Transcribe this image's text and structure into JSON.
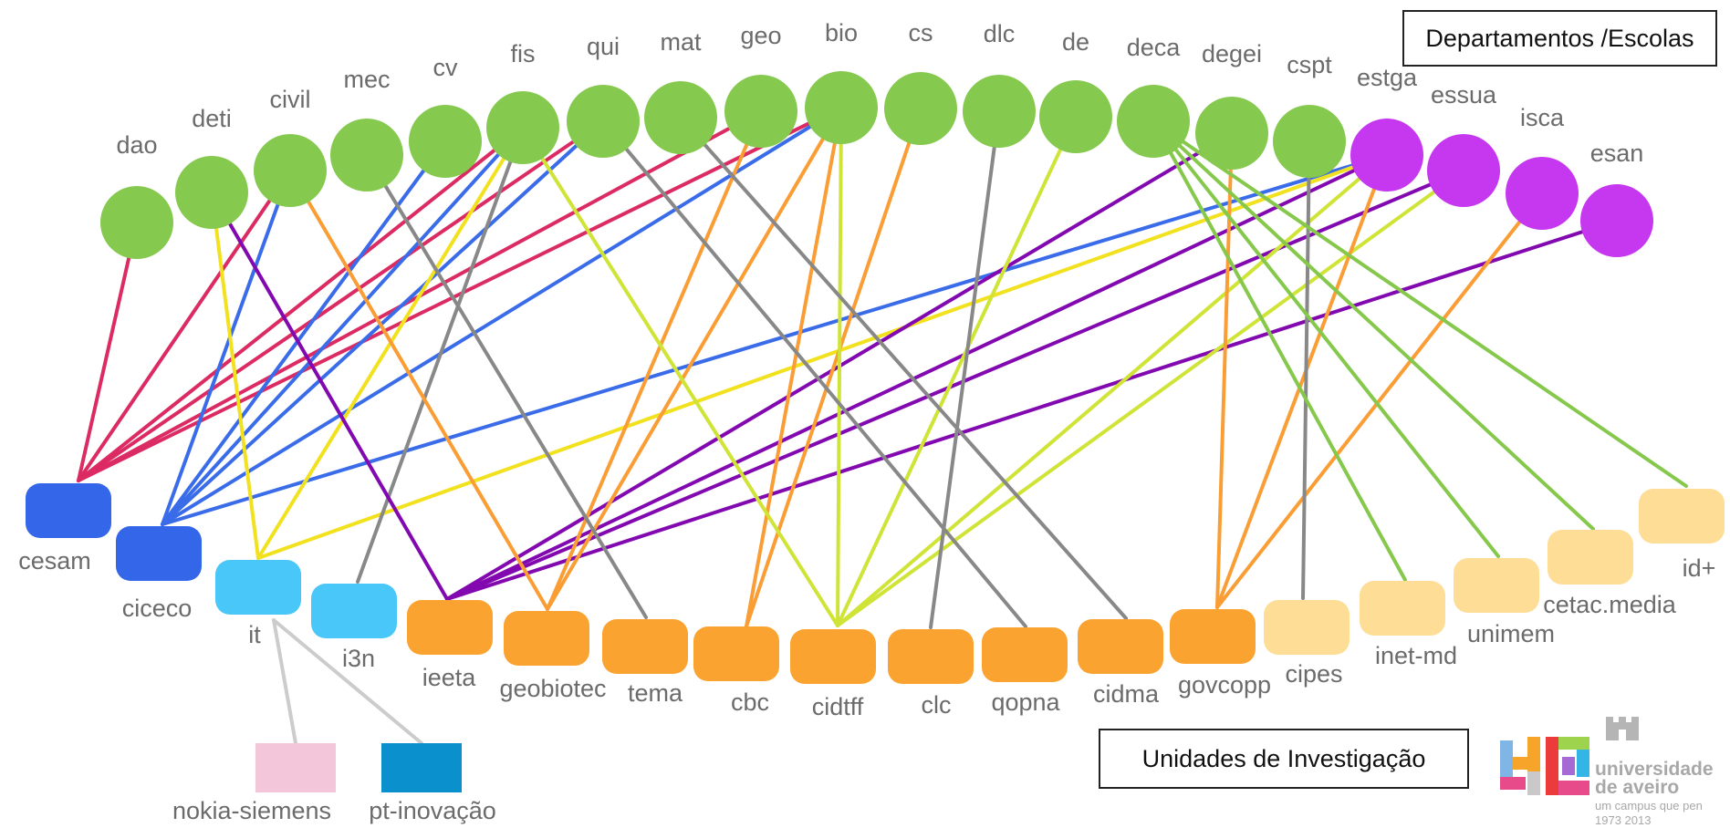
{
  "legend": {
    "departments": "Departamentos /Escolas",
    "units": "Unidades de Investigação"
  },
  "logo": {
    "name_line1": "universidade",
    "name_line2": "de aveiro",
    "tagline": "um campus que pen",
    "years": "1973  2013"
  },
  "colors": {
    "department": "#85c94e",
    "school": "#c637f0",
    "unit_blue": "#3366e8",
    "unit_cyan": "#49c7f8",
    "unit_orange": "#fba331",
    "unit_tan": "#fedd96",
    "partner_pink": "#f4c6da",
    "partner_blue": "#0a90cc",
    "label": "#6b6b6b"
  },
  "nodes": {
    "departments": [
      {
        "id": "dao",
        "label": "dao",
        "type": "department"
      },
      {
        "id": "deti",
        "label": "deti",
        "type": "department"
      },
      {
        "id": "civil",
        "label": "civil",
        "type": "department"
      },
      {
        "id": "mec",
        "label": "mec",
        "type": "department"
      },
      {
        "id": "cv",
        "label": "cv",
        "type": "department"
      },
      {
        "id": "fis",
        "label": "fis",
        "type": "department"
      },
      {
        "id": "qui",
        "label": "qui",
        "type": "department"
      },
      {
        "id": "mat",
        "label": "mat",
        "type": "department"
      },
      {
        "id": "geo",
        "label": "geo",
        "type": "department"
      },
      {
        "id": "bio",
        "label": "bio",
        "type": "department"
      },
      {
        "id": "cs",
        "label": "cs",
        "type": "department"
      },
      {
        "id": "dlc",
        "label": "dlc",
        "type": "department"
      },
      {
        "id": "de",
        "label": "de",
        "type": "department"
      },
      {
        "id": "deca",
        "label": "deca",
        "type": "department"
      },
      {
        "id": "degei",
        "label": "degei",
        "type": "department"
      },
      {
        "id": "cspt",
        "label": "cspt",
        "type": "department"
      },
      {
        "id": "estga",
        "label": "estga",
        "type": "school"
      },
      {
        "id": "essua",
        "label": "essua",
        "type": "school"
      },
      {
        "id": "isca",
        "label": "isca",
        "type": "school"
      },
      {
        "id": "esan",
        "label": "esan",
        "type": "school"
      }
    ],
    "units": [
      {
        "id": "cesam",
        "label": "cesam",
        "color": "#3366e8"
      },
      {
        "id": "ciceco",
        "label": "ciceco",
        "color": "#3366e8"
      },
      {
        "id": "it",
        "label": "it",
        "color": "#49c7f8"
      },
      {
        "id": "i3n",
        "label": "i3n",
        "color": "#49c7f8"
      },
      {
        "id": "ieeta",
        "label": "ieeta",
        "color": "#fba331"
      },
      {
        "id": "geobiotec",
        "label": "geobiotec",
        "color": "#fba331"
      },
      {
        "id": "tema",
        "label": "tema",
        "color": "#fba331"
      },
      {
        "id": "cbc",
        "label": "cbc",
        "color": "#fba331"
      },
      {
        "id": "cidtff",
        "label": "cidtff",
        "color": "#fba331"
      },
      {
        "id": "clc",
        "label": "clc",
        "color": "#fba331"
      },
      {
        "id": "qopna",
        "label": "qopna",
        "color": "#fba331"
      },
      {
        "id": "cidma",
        "label": "cidma",
        "color": "#fba331"
      },
      {
        "id": "govcopp",
        "label": "govcopp",
        "color": "#fba331"
      },
      {
        "id": "cipes",
        "label": "cipes",
        "color": "#fedd96"
      },
      {
        "id": "inet-md",
        "label": "inet-md",
        "color": "#fedd96"
      },
      {
        "id": "unimem",
        "label": "unimem",
        "color": "#fedd96"
      },
      {
        "id": "cetac.media",
        "label": "cetac.media",
        "color": "#fedd96"
      },
      {
        "id": "id+",
        "label": "id+",
        "color": "#fedd96"
      }
    ],
    "partners": [
      {
        "id": "nokia-siemens",
        "label": "nokia-siemens",
        "color": "#f4c6da"
      },
      {
        "id": "pt-inovacao",
        "label": "pt-inovação",
        "color": "#0a90cc"
      }
    ]
  },
  "edges": [
    {
      "from": "dao",
      "to": "cesam",
      "color": "#dc2a63"
    },
    {
      "from": "civil",
      "to": "cesam",
      "color": "#dc2a63"
    },
    {
      "from": "fis",
      "to": "cesam",
      "color": "#dc2a63"
    },
    {
      "from": "qui",
      "to": "cesam",
      "color": "#dc2a63"
    },
    {
      "from": "geo",
      "to": "cesam",
      "color": "#dc2a63"
    },
    {
      "from": "bio",
      "to": "cesam",
      "color": "#dc2a63"
    },
    {
      "from": "civil",
      "to": "ciceco",
      "color": "#3a6cea"
    },
    {
      "from": "cv",
      "to": "ciceco",
      "color": "#3a6cea"
    },
    {
      "from": "fis",
      "to": "ciceco",
      "color": "#3a6cea"
    },
    {
      "from": "qui",
      "to": "ciceco",
      "color": "#3a6cea"
    },
    {
      "from": "bio",
      "to": "ciceco",
      "color": "#3a6cea"
    },
    {
      "from": "estga",
      "to": "ciceco",
      "color": "#3a6cea"
    },
    {
      "from": "deti",
      "to": "it",
      "color": "#f2e11e"
    },
    {
      "from": "fis",
      "to": "it",
      "color": "#f2e11e"
    },
    {
      "from": "estga",
      "to": "it",
      "color": "#f2e11e"
    },
    {
      "from": "it",
      "to": "nokia-siemens",
      "color": "#cccccc"
    },
    {
      "from": "it",
      "to": "pt-inovacao",
      "color": "#cccccc"
    },
    {
      "from": "fis",
      "to": "i3n",
      "color": "#888888"
    },
    {
      "from": "deti",
      "to": "ieeta",
      "color": "#8208b0"
    },
    {
      "from": "degei",
      "to": "ieeta",
      "color": "#8208b0"
    },
    {
      "from": "estga",
      "to": "ieeta",
      "color": "#8208b0"
    },
    {
      "from": "essua",
      "to": "ieeta",
      "color": "#8208b0"
    },
    {
      "from": "esan",
      "to": "ieeta",
      "color": "#8208b0"
    },
    {
      "from": "civil",
      "to": "geobiotec",
      "color": "#f99d34"
    },
    {
      "from": "geo",
      "to": "geobiotec",
      "color": "#f99d34"
    },
    {
      "from": "bio",
      "to": "geobiotec",
      "color": "#f99d34"
    },
    {
      "from": "mec",
      "to": "tema",
      "color": "#888888"
    },
    {
      "from": "bio",
      "to": "cbc",
      "color": "#f99d34"
    },
    {
      "from": "cs",
      "to": "cbc",
      "color": "#f99d34"
    },
    {
      "from": "fis",
      "to": "cidtff",
      "color": "#cfe436"
    },
    {
      "from": "bio",
      "to": "cidtff",
      "color": "#cfe436"
    },
    {
      "from": "de",
      "to": "cidtff",
      "color": "#cfe436"
    },
    {
      "from": "estga",
      "to": "cidtff",
      "color": "#cfe436"
    },
    {
      "from": "essua",
      "to": "cidtff",
      "color": "#cfe436"
    },
    {
      "from": "dlc",
      "to": "clc",
      "color": "#888888"
    },
    {
      "from": "qui",
      "to": "qopna",
      "color": "#888888"
    },
    {
      "from": "mat",
      "to": "cidma",
      "color": "#888888"
    },
    {
      "from": "degei",
      "to": "govcopp",
      "color": "#f99d34"
    },
    {
      "from": "estga",
      "to": "govcopp",
      "color": "#f99d34"
    },
    {
      "from": "isca",
      "to": "govcopp",
      "color": "#f99d34"
    },
    {
      "from": "cspt",
      "to": "cipes",
      "color": "#888888"
    },
    {
      "from": "deca",
      "to": "inet-md",
      "color": "#86c84c"
    },
    {
      "from": "deca",
      "to": "unimem",
      "color": "#86c84c"
    },
    {
      "from": "deca",
      "to": "cetac.media",
      "color": "#86c84c"
    },
    {
      "from": "deca",
      "to": "id+",
      "color": "#86c84c"
    }
  ]
}
